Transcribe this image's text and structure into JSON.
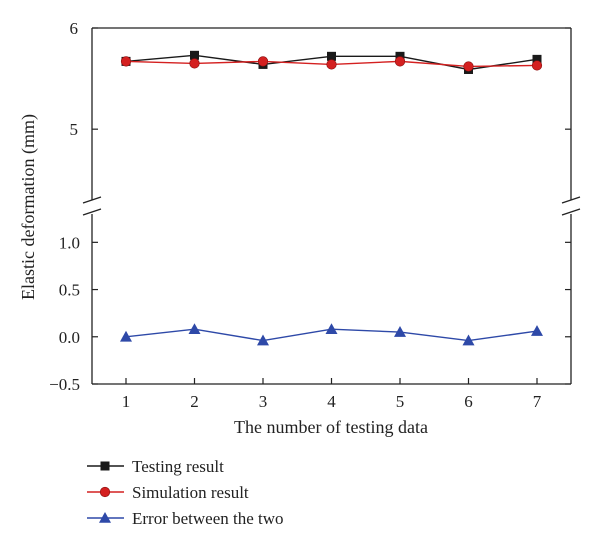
{
  "chart_data": {
    "type": "line",
    "title": "",
    "xlabel": "The number of testing data",
    "ylabel": "Elastic deformation (mm)",
    "x": [
      1,
      2,
      3,
      4,
      5,
      6,
      7
    ],
    "x_ticks": [
      "1",
      "2",
      "3",
      "4",
      "5",
      "6",
      "7"
    ],
    "y_axis_broken": true,
    "upper_panel": {
      "ylim": [
        4.3,
        6.0
      ],
      "y_ticks": [
        "5",
        "6"
      ]
    },
    "lower_panel": {
      "ylim": [
        -0.5,
        1.3
      ],
      "y_ticks": [
        "−0.5",
        "0.0",
        "0.5",
        "1.0"
      ]
    },
    "grid": false,
    "legend_position": "bottom-left, below plot",
    "series": [
      {
        "name": "Testing result",
        "panel": "upper",
        "marker": "square",
        "color": "#1a1a1a",
        "values": [
          5.67,
          5.73,
          5.64,
          5.72,
          5.72,
          5.59,
          5.69
        ]
      },
      {
        "name": "Simulation result",
        "panel": "upper",
        "marker": "circle",
        "color": "#d42020",
        "values": [
          5.67,
          5.65,
          5.67,
          5.64,
          5.67,
          5.62,
          5.63
        ]
      },
      {
        "name": "Error between the two",
        "panel": "lower",
        "marker": "triangle",
        "color": "#2e49a8",
        "values": [
          0.0,
          0.08,
          -0.04,
          0.08,
          0.05,
          -0.04,
          0.06
        ]
      }
    ]
  }
}
